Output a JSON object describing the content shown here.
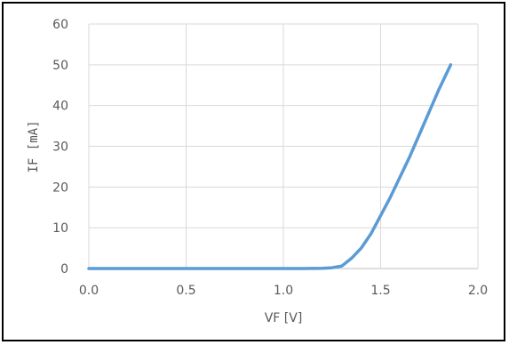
{
  "chart_data": {
    "type": "line",
    "title": "",
    "xlabel": "VF [V]",
    "ylabel": "IF [mA]",
    "xlim": [
      0,
      2.0
    ],
    "ylim": [
      0,
      60
    ],
    "x_ticks": [
      "0.0",
      "0.5",
      "1.0",
      "1.5",
      "2.0"
    ],
    "y_ticks": [
      "0",
      "10",
      "20",
      "30",
      "40",
      "50",
      "60"
    ],
    "grid": true,
    "legend": "none",
    "series": [
      {
        "color": "#5B9BD5",
        "x": [
          0.0,
          0.2,
          0.4,
          0.6,
          0.8,
          1.0,
          1.1,
          1.2,
          1.25,
          1.3,
          1.35,
          1.4,
          1.45,
          1.5,
          1.55,
          1.6,
          1.65,
          1.7,
          1.75,
          1.8,
          1.86
        ],
        "y": [
          0,
          0,
          0,
          0,
          0,
          0,
          0,
          0.05,
          0.2,
          0.6,
          2.5,
          5.0,
          8.5,
          13.0,
          17.5,
          22.5,
          27.5,
          33.0,
          38.5,
          44.0,
          50.0
        ]
      }
    ]
  },
  "colors": {
    "line": "#5B9BD5",
    "grid": "#D9D9D9",
    "text": "#595959",
    "frame": "#000000"
  }
}
